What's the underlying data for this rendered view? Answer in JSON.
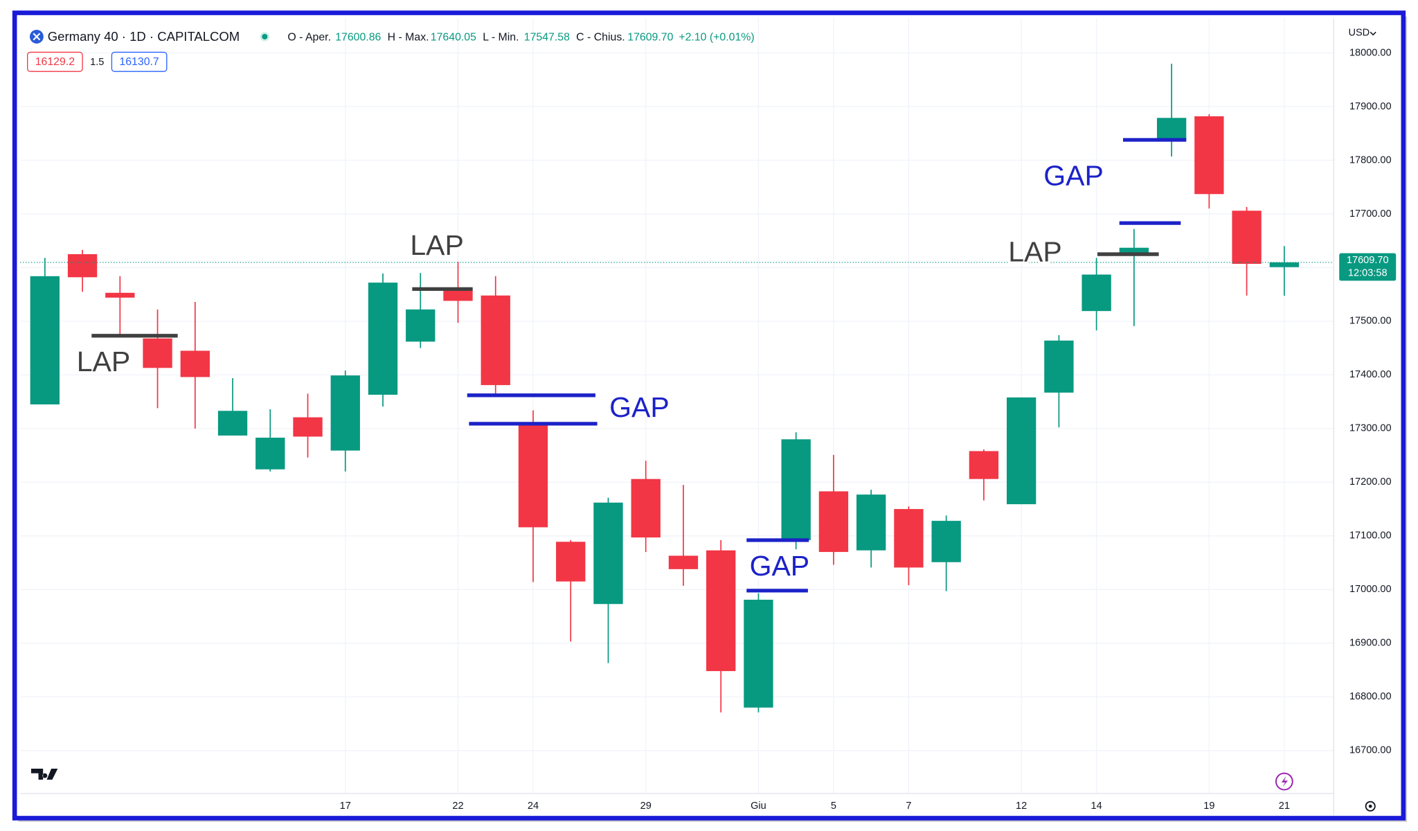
{
  "header": {
    "symbol": "Germany 40 · 1D · CAPITALCOM",
    "open_label": "O - Aper.",
    "open": "17600.86",
    "high_label": "H - Max.",
    "high": "17640.05",
    "low_label": "L - Min.",
    "low": "17547.58",
    "close_label": "C - Chius.",
    "close": "17609.70",
    "change": "+2.10 (+0.01%)"
  },
  "trade": {
    "sell": "16129.2",
    "spread": "1.5",
    "buy": "16130.7"
  },
  "chart_data": {
    "type": "candlestick",
    "currency": "USD",
    "categories": [
      null,
      null,
      null,
      null,
      null,
      null,
      null,
      null,
      "17",
      null,
      null,
      "22",
      null,
      "24",
      null,
      null,
      "29",
      null,
      null,
      "Giu",
      null,
      "5",
      null,
      "7",
      null,
      null,
      "12",
      null,
      "14",
      null,
      null,
      "19",
      null,
      "21"
    ],
    "open": [
      17345,
      17625,
      17553,
      17468,
      17445,
      17287,
      17224,
      17321,
      17259,
      17363,
      17462,
      17560,
      17548,
      17309,
      17089,
      16973,
      17206,
      17063,
      17073,
      16780,
      17092,
      17183,
      17073,
      17150,
      17051,
      17258,
      17159,
      17367,
      17519,
      17626,
      17838,
      17882,
      17706,
      17600.86
    ],
    "high": [
      17618,
      17633,
      17584,
      17522,
      17536,
      17394,
      17336,
      17365,
      17408,
      17589,
      17590,
      17611,
      17584,
      17334,
      17092,
      17171,
      17240,
      17195,
      17092,
      16993,
      17293,
      17251,
      17186,
      17155,
      17138,
      17261,
      17358,
      17474,
      17618,
      17672,
      17980,
      17886,
      17713,
      17640.05
    ],
    "low": [
      17345,
      17555,
      17473,
      17338,
      17300,
      17287,
      17220,
      17246,
      17220,
      17341,
      17450,
      17497,
      17365,
      17014,
      16903,
      16863,
      17070,
      17007,
      16771,
      16771,
      17075,
      17046,
      17041,
      17008,
      16997,
      17166,
      17159,
      17302,
      17483,
      17491,
      17807,
      17710,
      17548,
      17547.58
    ],
    "close": [
      17584,
      17582,
      17544,
      17413,
      17396,
      17333,
      17283,
      17285,
      17399,
      17572,
      17522,
      17538,
      17381,
      17116,
      17015,
      17162,
      17097,
      17038,
      16848,
      16981,
      17280,
      17070,
      17177,
      17041,
      17128,
      17206,
      17358,
      17464,
      17587,
      17637,
      17879,
      17737,
      17607,
      17609.7
    ],
    "up_color": "#089981",
    "down_color": "#f23645",
    "ylim": [
      16620,
      18056
    ],
    "yticks": [
      {
        "value": 16700,
        "label": "16700.00"
      },
      {
        "value": 16800,
        "label": "16800.00"
      },
      {
        "value": 16900,
        "label": "16900.00"
      },
      {
        "value": 17000,
        "label": "17000.00"
      },
      {
        "value": 17100,
        "label": "17100.00"
      },
      {
        "value": 17200,
        "label": "17200.00"
      },
      {
        "value": 17300,
        "label": "17300.00"
      },
      {
        "value": 17400,
        "label": "17400.00"
      },
      {
        "value": 17500,
        "label": "17500.00"
      },
      {
        "value": 17600,
        "label": "17600.00"
      },
      {
        "value": 17700,
        "label": "17700.00"
      },
      {
        "value": 17800,
        "label": "17800.00"
      },
      {
        "value": 17900,
        "label": "17900.00"
      },
      {
        "value": 18000,
        "label": "18000.00"
      }
    ],
    "grid": true,
    "last_price": {
      "value": 17609.7,
      "label": "17609.70",
      "countdown": "12:03:58"
    },
    "annotations": [
      {
        "text": "LAP",
        "color": "#404040",
        "levels": [
          17473
        ]
      },
      {
        "text": "LAP",
        "color": "#404040",
        "levels": [
          17560
        ]
      },
      {
        "text": "GAP",
        "color": "#1c22c8",
        "levels": [
          17362,
          17309
        ]
      },
      {
        "text": "GAP",
        "color": "#1c22c8",
        "levels": [
          17092,
          16998
        ]
      },
      {
        "text": "LAP",
        "color": "#404040",
        "levels": [
          17625
        ]
      },
      {
        "text": "GAP",
        "color": "#1c22c8",
        "levels": [
          17683,
          17838
        ]
      }
    ]
  }
}
